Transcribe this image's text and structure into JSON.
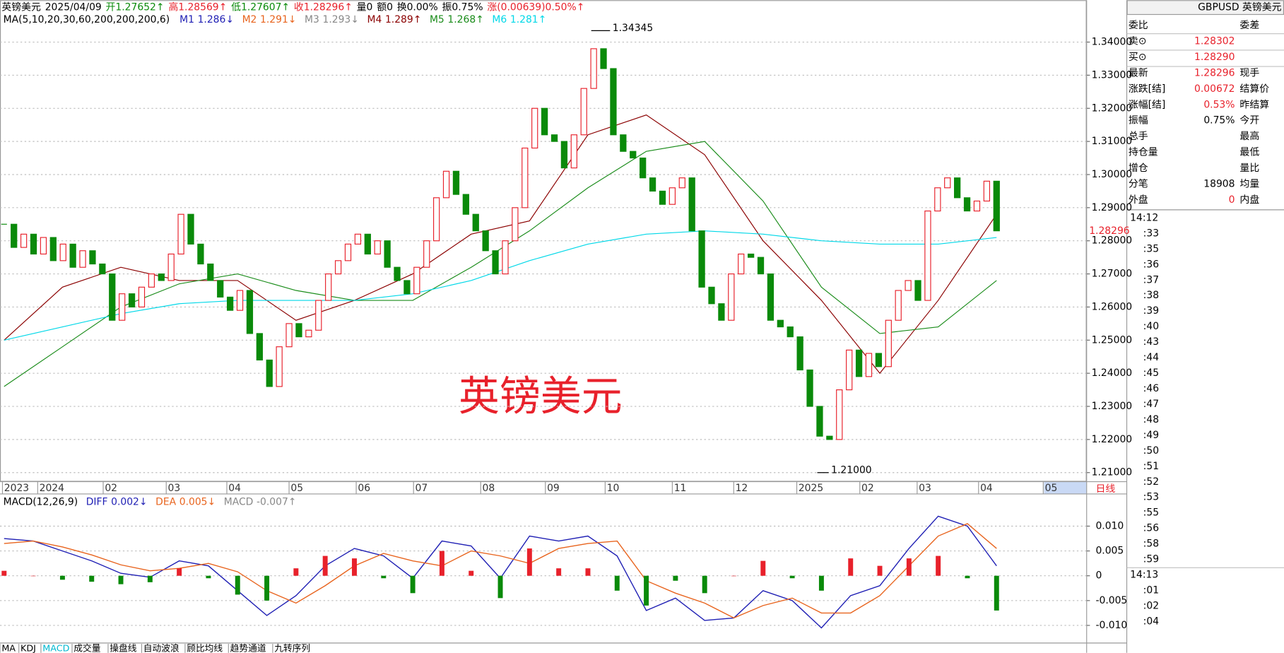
{
  "header": {
    "quote": [
      {
        "text": "英镑美元",
        "color": "#000000"
      },
      {
        "text": "2025/04/09",
        "color": "#000000"
      },
      {
        "text": "开1.27652↑",
        "color": "#0a8a0a"
      },
      {
        "text": "高1.28569↑",
        "color": "#e8212b"
      },
      {
        "text": "低1.27607↑",
        "color": "#0a8a0a"
      },
      {
        "text": "收1.28296↑",
        "color": "#e8212b"
      },
      {
        "text": "量0",
        "color": "#000000"
      },
      {
        "text": "额0",
        "color": "#000000"
      },
      {
        "text": "换0.00%",
        "color": "#000000"
      },
      {
        "text": "振0.75%",
        "color": "#000000"
      },
      {
        "text": "涨(0.00639)0.50%↑",
        "color": "#e8212b"
      }
    ]
  },
  "chart_data": [
    {
      "type": "candlestick",
      "ma_title": "MA(5,10,20,30,60,200,200,200,6)",
      "ma_legend": [
        {
          "name": "M1",
          "label": "1.286↓",
          "color": "#1f1fb4"
        },
        {
          "name": "M2",
          "label": "1.291↓",
          "color": "#e8641e"
        },
        {
          "name": "M3",
          "label": "1.293↓",
          "color": "#888888"
        },
        {
          "name": "M4",
          "label": "1.289↑",
          "color": "#8b0000",
          "values": [
            1.25,
            1.266,
            1.272,
            1.268,
            1.268,
            1.256,
            1.262,
            1.27,
            1.282,
            1.286,
            1.312,
            1.318,
            1.306,
            1.28,
            1.262,
            1.24,
            1.262,
            1.288
          ]
        },
        {
          "name": "M5",
          "label": "1.268↑",
          "color": "#1a8c1a",
          "values": [
            1.236,
            1.248,
            1.26,
            1.267,
            1.27,
            1.265,
            1.262,
            1.262,
            1.272,
            1.283,
            1.296,
            1.307,
            1.31,
            1.292,
            1.266,
            1.252,
            1.254,
            1.268
          ]
        },
        {
          "name": "M6",
          "label": "1.281↑",
          "color": "#00d8e8",
          "values": [
            1.25,
            1.254,
            1.258,
            1.261,
            1.262,
            1.262,
            1.262,
            1.264,
            1.268,
            1.274,
            1.279,
            1.282,
            1.283,
            1.282,
            1.28,
            1.279,
            1.279,
            1.281
          ]
        }
      ],
      "close": [
        1.285,
        1.278,
        1.282,
        1.276,
        1.281,
        1.274,
        1.279,
        1.272,
        1.277,
        1.273,
        1.27,
        1.256,
        1.264,
        1.26,
        1.266,
        1.27,
        1.268,
        1.276,
        1.288,
        1.279,
        1.273,
        1.268,
        1.263,
        1.259,
        1.265,
        1.252,
        1.244,
        1.236,
        1.248,
        1.255,
        1.251,
        1.253,
        1.262,
        1.27,
        1.274,
        1.279,
        1.282,
        1.276,
        1.28,
        1.272,
        1.268,
        1.264,
        1.272,
        1.28,
        1.293,
        1.301,
        1.294,
        1.288,
        1.283,
        1.277,
        1.27,
        1.28,
        1.29,
        1.308,
        1.32,
        1.312,
        1.31,
        1.302,
        1.312,
        1.326,
        1.338,
        1.332,
        1.312,
        1.307,
        1.305,
        1.299,
        1.295,
        1.291,
        1.296,
        1.299,
        1.283,
        1.266,
        1.261,
        1.256,
        1.27,
        1.276,
        1.275,
        1.27,
        1.256,
        1.254,
        1.251,
        1.241,
        1.23,
        1.221,
        1.22,
        1.235,
        1.247,
        1.239,
        1.246,
        1.242,
        1.256,
        1.265,
        1.268,
        1.262,
        1.289,
        1.296,
        1.299,
        1.293,
        1.289,
        1.292,
        1.298,
        1.283
      ],
      "up_color": "#e8212b",
      "down_color": "#0a8a0a",
      "ylim": [
        1.208,
        1.3445
      ],
      "yticks": [
        {
          "value": 1.21,
          "label": "1.21000"
        },
        {
          "value": 1.22,
          "label": "1.22000"
        },
        {
          "value": 1.23,
          "label": "1.23000"
        },
        {
          "value": 1.24,
          "label": "1.24000"
        },
        {
          "value": 1.25,
          "label": "1.25000"
        },
        {
          "value": 1.26,
          "label": "1.26000"
        },
        {
          "value": 1.27,
          "label": "1.27000"
        },
        {
          "value": 1.28,
          "label": "1.28000"
        },
        {
          "value": 1.29,
          "label": "1.29000"
        },
        {
          "value": 1.3,
          "label": "1.30000"
        },
        {
          "value": 1.31,
          "label": "1.31000"
        },
        {
          "value": 1.32,
          "label": "1.32000"
        },
        {
          "value": 1.33,
          "label": "1.33000"
        },
        {
          "value": 1.34,
          "label": "1.34000"
        }
      ],
      "grid": true,
      "annotations": [
        {
          "value": 1.34345,
          "label": "1.34345"
        },
        {
          "value": 1.21,
          "label": "1.21000"
        }
      ],
      "last_price": {
        "value": 1.28296,
        "label": "1.28296",
        "color": "#e8212b"
      },
      "time_labels": [
        "2023",
        "2024",
        "02",
        "03",
        "04",
        "05",
        "06",
        "07",
        "08",
        "09",
        "10",
        "11",
        "12",
        "2025",
        "02",
        "03",
        "04",
        "05"
      ],
      "period": "日线",
      "watermark": "英镑美元"
    },
    {
      "type": "macd",
      "title": "MACD(12,26,9)",
      "series": [
        {
          "name": "DIFF",
          "label": "0.002↓",
          "color": "#1f1fb4",
          "values": [
            0.0075,
            0.007,
            0.005,
            0.003,
            0.0005,
            -0.0003,
            0.003,
            0.002,
            -0.003,
            -0.008,
            -0.004,
            0.002,
            0.0055,
            0.004,
            -0.0005,
            0.007,
            0.006,
            -0.0005,
            0.008,
            0.007,
            0.008,
            0.004,
            -0.007,
            -0.0045,
            -0.009,
            -0.0085,
            -0.003,
            -0.005,
            -0.0105,
            -0.004,
            -0.002,
            0.0055,
            0.012,
            0.01,
            0.002
          ]
        },
        {
          "name": "DEA",
          "label": "0.005↓",
          "color": "#e8641e",
          "values": [
            0.0065,
            0.007,
            0.0058,
            0.0042,
            0.0022,
            0.001,
            0.0015,
            0.0025,
            0.0008,
            -0.003,
            -0.0055,
            -0.002,
            0.002,
            0.0045,
            0.003,
            0.002,
            0.005,
            0.004,
            0.0025,
            0.0055,
            0.0065,
            0.007,
            -0.001,
            -0.0035,
            -0.0055,
            -0.0085,
            -0.006,
            -0.0045,
            -0.0075,
            -0.0075,
            -0.004,
            0.002,
            0.008,
            0.0105,
            0.0055
          ]
        },
        {
          "name": "MACD",
          "label": "-0.007↑",
          "color": "#888888",
          "values": [
            0.001,
            0,
            -0.0008,
            -0.0012,
            -0.0017,
            -0.0013,
            0.0015,
            -0.0005,
            -0.0038,
            -0.005,
            0.0015,
            0.004,
            0.0035,
            -0.0005,
            -0.0035,
            0.005,
            0.001,
            -0.0045,
            0.0055,
            0.0015,
            0.0015,
            -0.003,
            -0.006,
            -0.001,
            -0.0035,
            0,
            0.003,
            -0.0005,
            -0.003,
            0.0035,
            0.002,
            0.0035,
            0.004,
            -0.0005,
            -0.007
          ]
        }
      ],
      "up_color": "#e8212b",
      "down_color": "#0a8a0a",
      "ylim": [
        -0.0119,
        0.0145
      ],
      "yticks": [
        {
          "value": 0.01,
          "label": "0.010"
        },
        {
          "value": 0.005,
          "label": "0.005"
        },
        0,
        {
          "value": -0.005,
          "label": "-0.005"
        },
        {
          "value": -0.01,
          "label": "-0.010"
        }
      ],
      "grid": true
    }
  ],
  "quote_panel": {
    "title": "GBPUSD 英镑美元",
    "rows": [
      {
        "label": "委比",
        "right": "委差"
      },
      {
        "label": "卖⊙",
        "value": "1.28302",
        "color": "#e8212b"
      },
      {
        "label": "买⊙",
        "value": "1.28290",
        "color": "#e8212b"
      },
      {
        "label": "最新",
        "value": "1.28296",
        "color": "#e8212b",
        "right": "现手"
      },
      {
        "label": "涨跌[结]",
        "value": "0.00672",
        "color": "#e8212b",
        "right": "结算价"
      },
      {
        "label": "涨幅[结]",
        "value": "0.53%",
        "color": "#e8212b",
        "right": "昨结算"
      },
      {
        "label": "振幅",
        "value": "0.75%",
        "color": "#000000",
        "right": "今开"
      },
      {
        "label": "总手",
        "right": "最高"
      },
      {
        "label": "持仓量",
        "right": "最低"
      },
      {
        "label": "增仓",
        "right": "量比"
      },
      {
        "label": "分笔",
        "value": "18908",
        "color": "#000000",
        "right": "均量"
      },
      {
        "label": "外盘",
        "value": "0",
        "color": "#e8212b",
        "right": "内盘"
      }
    ],
    "times": [
      "14:12",
      ":33",
      ":35",
      ":36",
      ":37",
      ":38",
      ":39",
      ":40",
      ":43",
      ":44",
      ":45",
      ":46",
      ":47",
      ":48",
      ":49",
      ":50",
      ":51",
      ":52",
      ":53",
      ":55",
      ":56",
      ":58",
      ":59",
      "14:13",
      ":01",
      ":02",
      ":04"
    ]
  },
  "tabs": [
    "MA",
    "KDJ",
    "MACD",
    "成交量",
    "操盘线",
    "自动波浪",
    "顾比均线",
    "趋势通道",
    "九转序列"
  ]
}
